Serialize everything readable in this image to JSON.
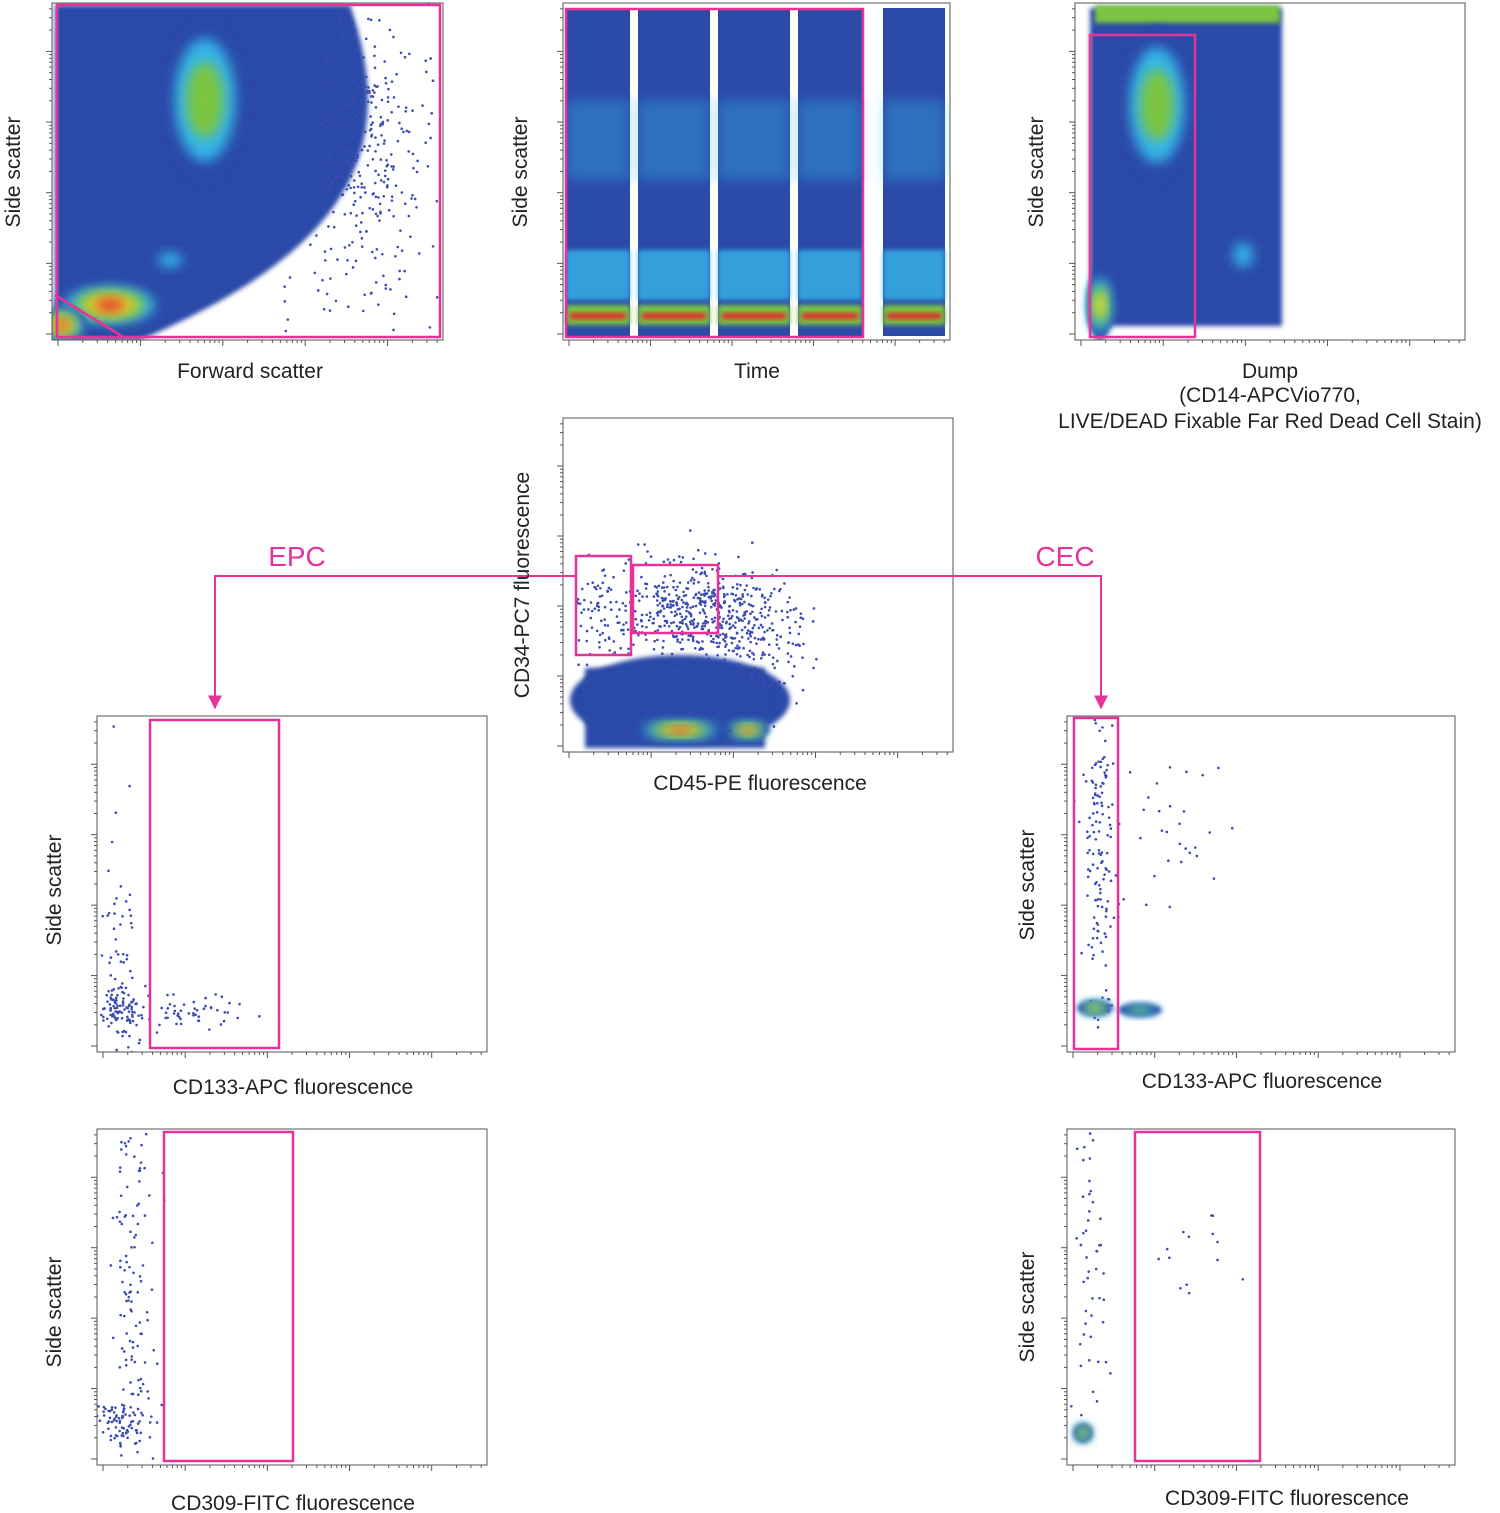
{
  "colors": {
    "gate": "#e6339a",
    "low": "#2b4aa8",
    "mid": "#35b6e8",
    "high": "#7cc540",
    "higher": "#f0e22a",
    "max": "#e3262c"
  },
  "chart_data": [
    {
      "id": "p1",
      "type": "scatter",
      "xlabel": "Forward scatter",
      "ylabel": "Side scatter",
      "grid": false
    },
    {
      "id": "p2",
      "type": "scatter",
      "xlabel": "Time",
      "ylabel": "Side scatter",
      "grid": false
    },
    {
      "id": "p3",
      "type": "scatter",
      "xlabel": [
        "Dump",
        "(CD14-APCVio770,",
        "LIVE/DEAD Fixable Far Red Dead Cell Stain)"
      ],
      "ylabel": "Side scatter",
      "grid": false
    },
    {
      "id": "p4",
      "type": "scatter",
      "xlabel": "CD45-PE fluorescence",
      "ylabel": "CD34-PC7 fluorescence",
      "grid": false,
      "gates": [
        "EPC",
        "CEC"
      ]
    },
    {
      "id": "p5",
      "type": "scatter",
      "xlabel": "CD133-APC fluorescence",
      "ylabel": "Side scatter",
      "grid": false,
      "population": "EPC"
    },
    {
      "id": "p6",
      "type": "scatter",
      "xlabel": "CD133-APC fluorescence",
      "ylabel": "Side scatter",
      "grid": false,
      "population": "CEC"
    },
    {
      "id": "p7",
      "type": "scatter",
      "xlabel": "CD309-FITC fluorescence",
      "ylabel": "Side scatter",
      "grid": false,
      "population": "EPC"
    },
    {
      "id": "p8",
      "type": "scatter",
      "xlabel": "CD309-FITC fluorescence",
      "ylabel": "Side scatter",
      "grid": false,
      "population": "CEC"
    }
  ],
  "gates": {
    "epc": "EPC",
    "cec": "CEC"
  }
}
